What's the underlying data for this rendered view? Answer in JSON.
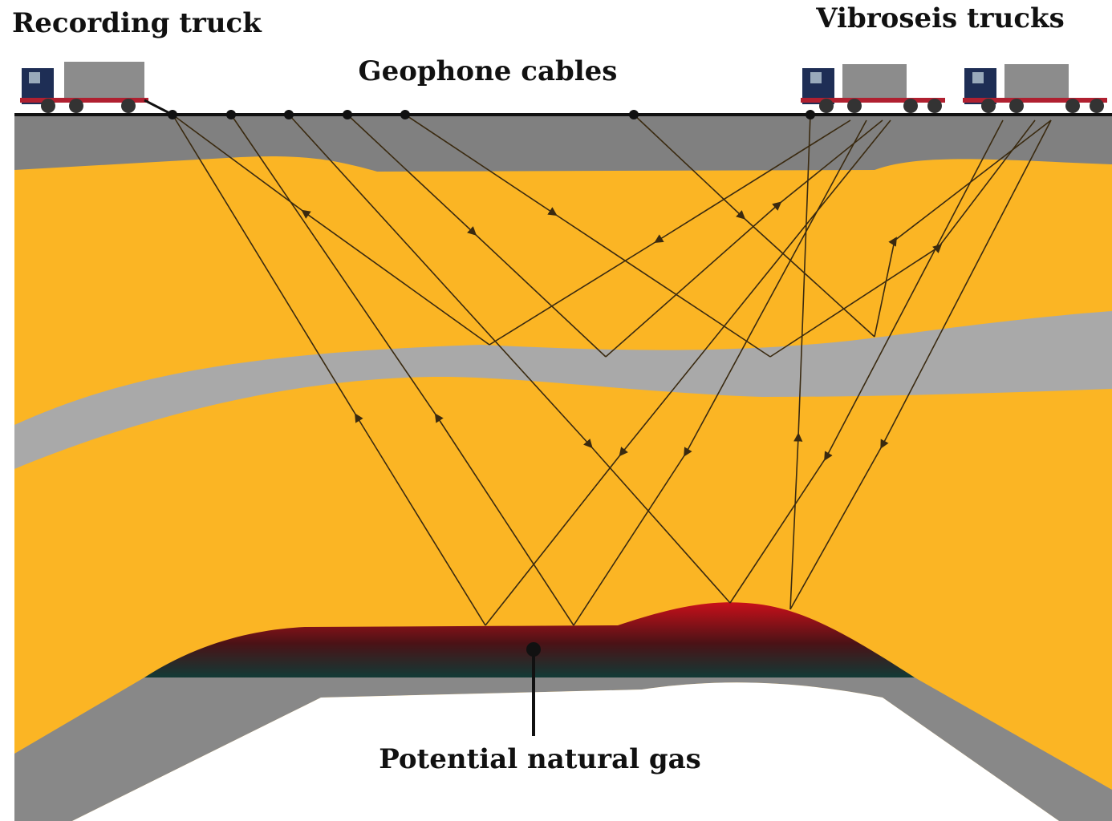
{
  "labels": {
    "recording_truck": "Recording truck",
    "vibroseis_trucks": "Vibroseis trucks",
    "geophone_cables": "Geophone cables",
    "natural_gas": "Potential natural gas"
  }
}
